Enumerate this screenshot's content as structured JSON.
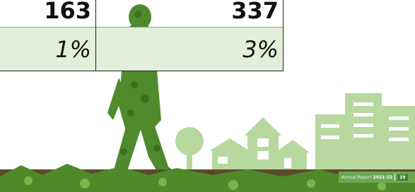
{
  "table": {
    "rows": [
      [
        "163",
        "337"
      ],
      [
        "1%",
        "3%"
      ]
    ]
  },
  "footer": {
    "label": "Annual Report",
    "year": "2021-22",
    "page": "29"
  }
}
